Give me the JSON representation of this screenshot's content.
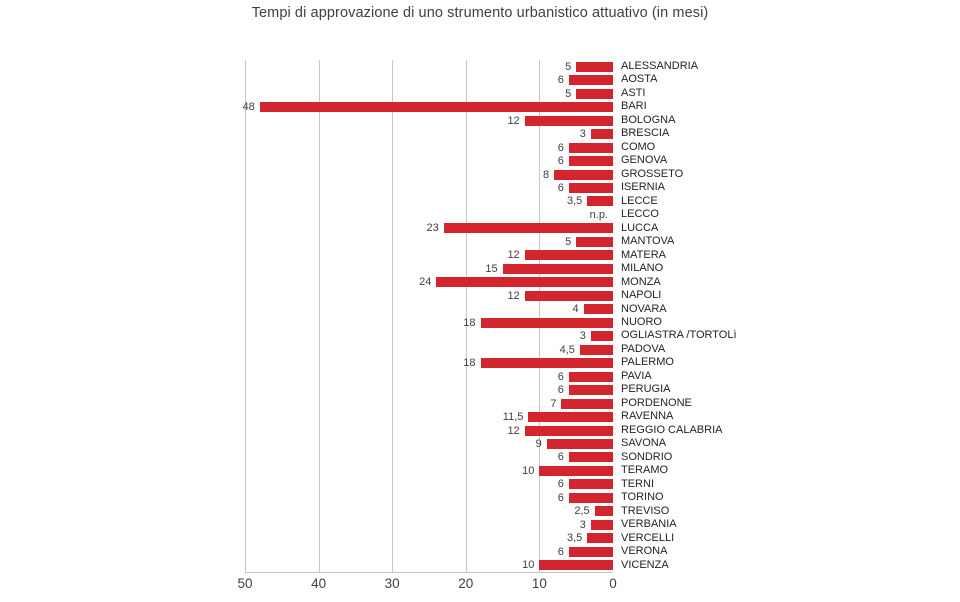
{
  "title": "Tempi di approvazione di uno strumento urbanistico attuativo (in mesi)",
  "colors": {
    "bar": "#d3252e",
    "grid": "#c7c7c7",
    "value_text": "#404041",
    "category_text": "#231f20",
    "title_text": "#404041"
  },
  "chart_data": {
    "type": "bar",
    "orientation": "horizontal",
    "title": "Tempi di approvazione di uno strumento urbanistico attuativo (in mesi)",
    "value_unit": "mesi",
    "xlim": [
      0,
      50
    ],
    "axis_ticks": [
      "50",
      "40",
      "30",
      "20",
      "10",
      "0"
    ],
    "axis_tick_values": [
      50,
      40,
      30,
      20,
      10,
      0
    ],
    "grid": true,
    "legend": "none",
    "categories": [
      "ALESSANDRIA",
      "AOSTA",
      "ASTI",
      "BARI",
      "BOLOGNA",
      "BRESCIA",
      "COMO",
      "GENOVA",
      "GROSSETO",
      "ISERNIA",
      "LECCE",
      "LECCO",
      "LUCCA",
      "MANTOVA",
      "MATERA",
      "MILANO",
      "MONZA",
      "NAPOLI",
      "NOVARA",
      "NUORO",
      "OGLIASTRA /TORTOLì",
      "PADOVA",
      "PALERMO",
      "PAVIA",
      "PERUGIA",
      "PORDENONE",
      "RAVENNA",
      "REGGIO CALABRIA",
      "SAVONA",
      "SONDRIO",
      "TERAMO",
      "TERNI",
      "TORINO",
      "TREVISO",
      "VERBANIA",
      "VERCELLI",
      "VERONA",
      "VICENZA"
    ],
    "values": [
      5,
      6,
      5,
      48,
      12,
      3,
      6,
      6,
      8,
      6,
      3.5,
      null,
      23,
      5,
      12,
      15,
      24,
      12,
      4,
      18,
      3,
      4.5,
      18,
      6,
      6,
      7,
      11.5,
      12,
      9,
      6,
      10,
      6,
      6,
      2.5,
      3,
      3.5,
      6,
      10
    ],
    "value_labels": [
      "5",
      "6",
      "5",
      "48",
      "12",
      "3",
      "6",
      "6",
      "8",
      "6",
      "3,5",
      "n.p.",
      "23",
      "5",
      "12",
      "15",
      "24",
      "12",
      "4",
      "18",
      "3",
      "4,5",
      "18",
      "6",
      "6",
      "7",
      "11,5",
      "12",
      "9",
      "6",
      "10",
      "6",
      "6",
      "2,5",
      "3",
      "3,5",
      "6",
      "10"
    ]
  }
}
